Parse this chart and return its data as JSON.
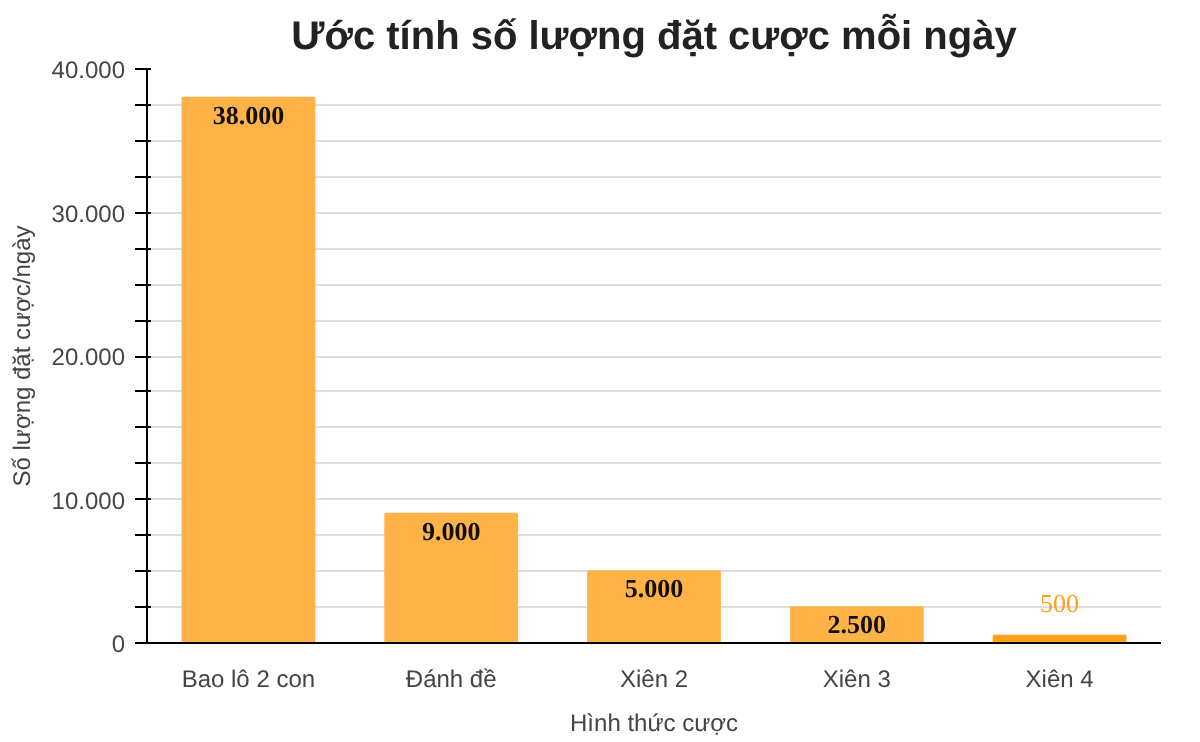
{
  "chart_data": {
    "type": "bar",
    "title": "Ước tính số lượng đặt cược mỗi ngày",
    "xlabel": "Hình thức cược",
    "ylabel": "Số lượng đặt cược/ngày",
    "categories": [
      "Bao lô 2 con",
      "Đánh đề",
      "Xiên 2",
      "Xiên 3",
      "Xiên 4"
    ],
    "values": [
      38000,
      9000,
      5000,
      2500,
      500
    ],
    "colors": [
      "#ffb347",
      "#ffb347",
      "#ffb347",
      "#ffb347",
      "#ff9f1a"
    ],
    "value_labels": [
      "38.000",
      "9.000",
      "5.000",
      "2.500",
      "500"
    ],
    "ylim": [
      0,
      40000
    ],
    "yticks": [
      0,
      {
        "value": 2500,
        "label": null
      },
      {
        "value": 5000,
        "label": null
      },
      {
        "value": 7500,
        "label": null
      },
      {
        "value": 10000,
        "label": "10.000"
      },
      {
        "value": 12500,
        "label": null
      },
      {
        "value": 15000,
        "label": null
      },
      {
        "value": 17500,
        "label": null
      },
      {
        "value": 20000,
        "label": "20.000"
      },
      {
        "value": 22500,
        "label": null
      },
      {
        "value": 25000,
        "label": null
      },
      {
        "value": 27500,
        "label": null
      },
      {
        "value": 30000,
        "label": "30.000"
      },
      {
        "value": 32500,
        "label": null
      },
      {
        "value": 35000,
        "label": null
      },
      {
        "value": 37500,
        "label": null
      },
      {
        "value": 40000,
        "label": "40.000"
      }
    ],
    "grid": "y"
  }
}
